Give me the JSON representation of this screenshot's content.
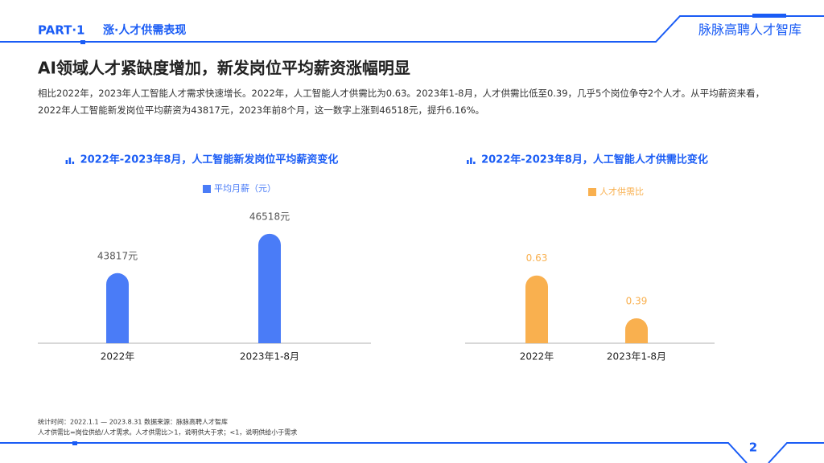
{
  "header": {
    "part": "PART·1",
    "section": "涨·人才供需表现",
    "brand": "脉脉高聘人才智库"
  },
  "title": "AI领域人才紧缺度增加，新发岗位平均薪资涨幅明显",
  "description": "相比2022年，2023年人工智能人才需求快速增长。2022年，人工智能人才供需比为0.63。2023年1-8月，人才供需比低至0.39，几乎5个岗位争夺2个人才。从平均薪资来看，2022年人工智能新发岗位平均薪资为43817元，2023年前8个月，这一数字上涨到46518元，提升6.16%。",
  "chart_data": [
    {
      "type": "bar",
      "title": "2022年-2023年8月，人工智能新发岗位平均薪资变化",
      "categories": [
        "2022年",
        "2023年1-8月"
      ],
      "series": [
        {
          "name": "平均月薪（元）",
          "color": "#4a7cf7",
          "values": [
            43817,
            46518
          ],
          "value_labels": [
            "43817元",
            "46518元"
          ]
        }
      ],
      "ylim": [
        39000,
        48000
      ]
    },
    {
      "type": "bar",
      "title": "2022年-2023年8月，人工智能人才供需比变化",
      "categories": [
        "2022年",
        "2023年1-8月"
      ],
      "series": [
        {
          "name": "人才供需比",
          "color": "#f9b04f",
          "values": [
            0.63,
            0.39
          ]
        }
      ],
      "ylim": [
        0.25,
        0.8
      ]
    }
  ],
  "footnotes": [
    "统计时间：2022.1.1 — 2023.8.31  数据来源：脉脉高聘人才智库",
    "人才供需比=岗位供给/人才需求。人才供需比＞1，说明供大于求；<1，说明供给小于需求"
  ],
  "page_number": 2
}
